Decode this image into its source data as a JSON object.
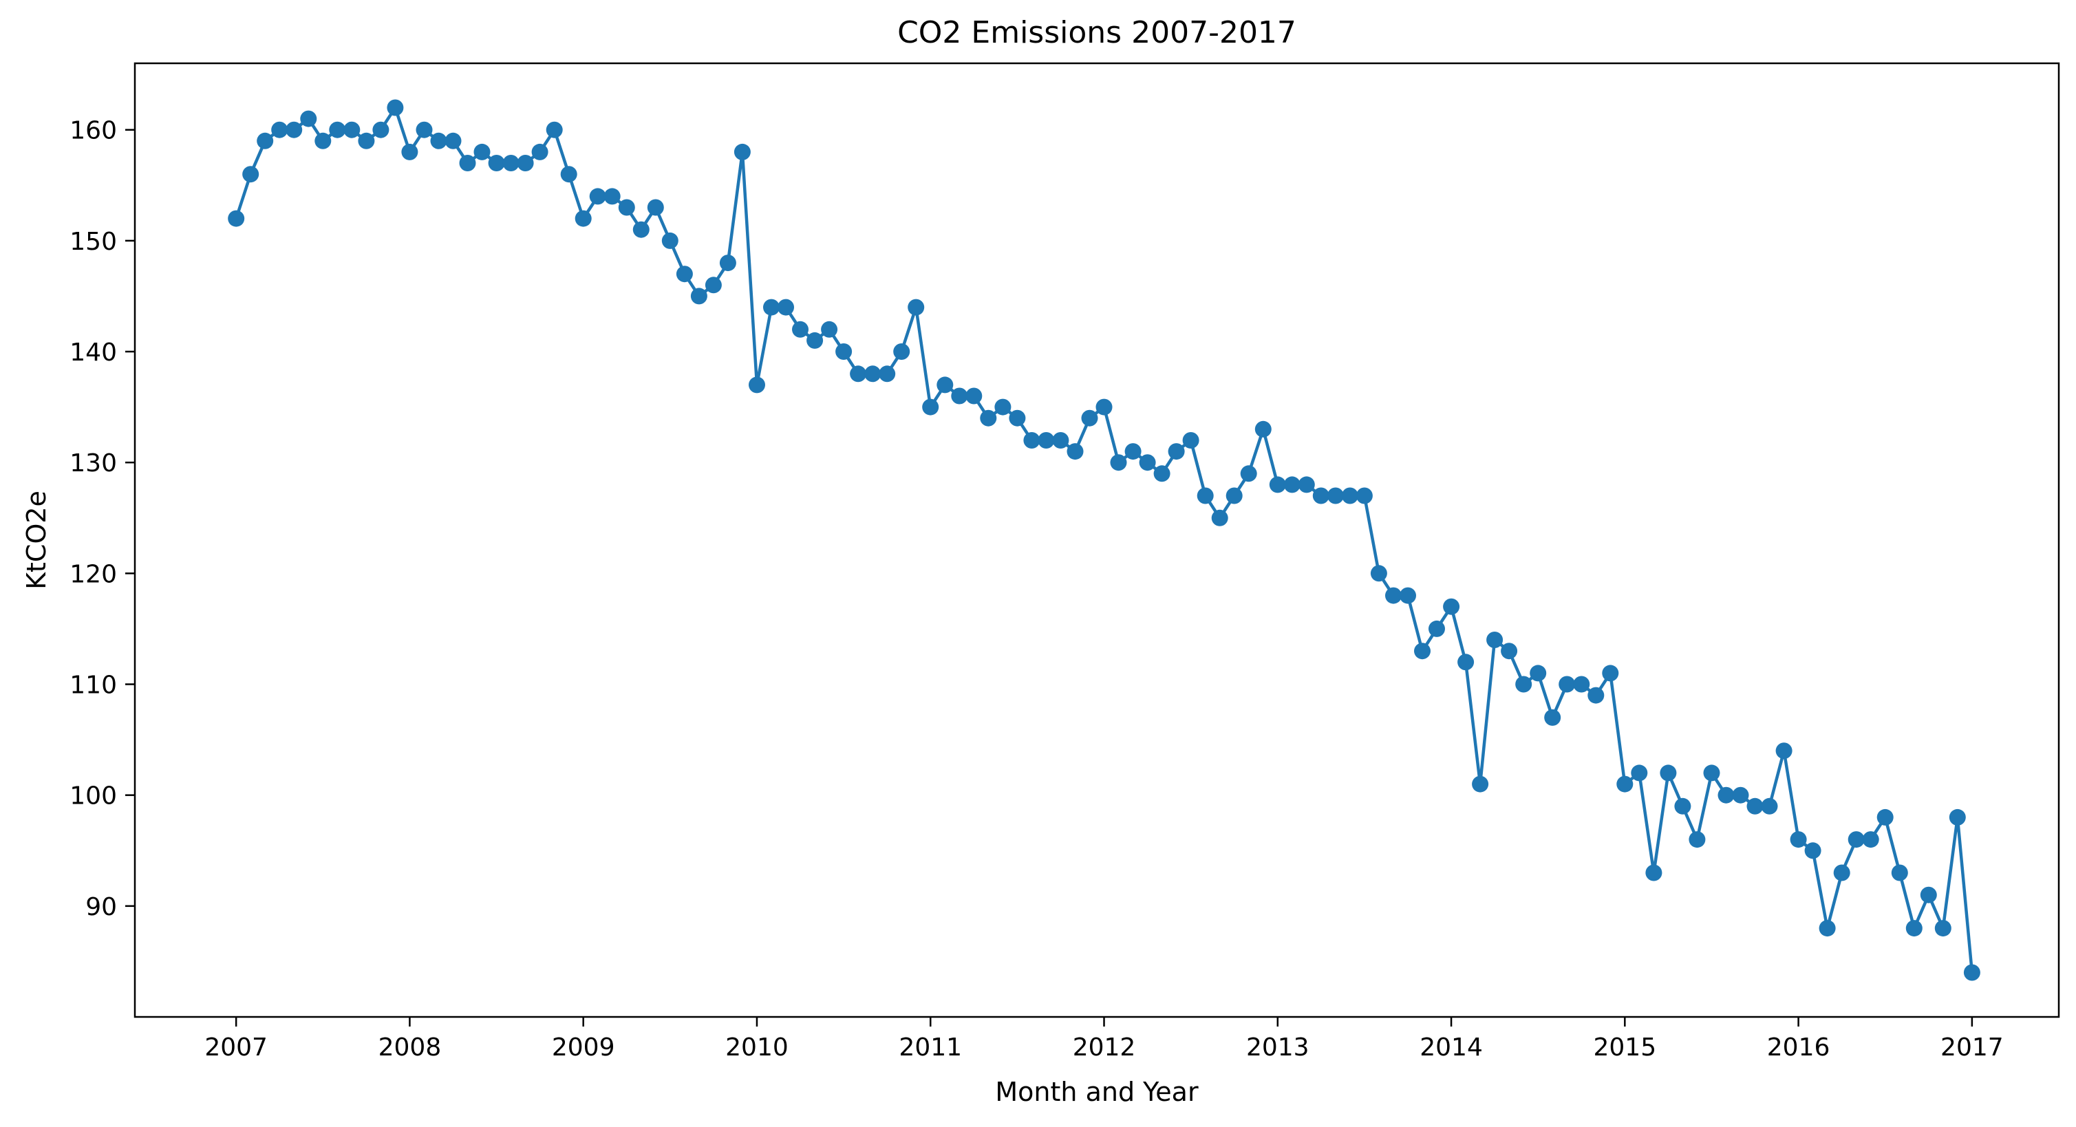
{
  "chart_data": {
    "type": "line",
    "title": "CO2 Emissions 2007-2017",
    "xlabel": "Month and Year",
    "ylabel": "KtCO2e",
    "xlim": [
      "2006-06-01",
      "2017-07-01"
    ],
    "ylim": [
      80,
      166
    ],
    "x_ticks": [
      "2007",
      "2008",
      "2009",
      "2010",
      "2011",
      "2012",
      "2013",
      "2014",
      "2015",
      "2016",
      "2017"
    ],
    "y_ticks": [
      "90",
      "100",
      "110",
      "120",
      "130",
      "140",
      "150",
      "160"
    ],
    "grid": false,
    "legend": "none",
    "marker": "circle",
    "colors": {
      "line": "#1f77b4",
      "axes": "#000000",
      "background": "#ffffff"
    },
    "x": [
      "2007-01",
      "2007-02",
      "2007-03",
      "2007-04",
      "2007-05",
      "2007-06",
      "2007-07",
      "2007-08",
      "2007-09",
      "2007-10",
      "2007-11",
      "2007-12",
      "2008-01",
      "2008-02",
      "2008-03",
      "2008-04",
      "2008-05",
      "2008-06",
      "2008-07",
      "2008-08",
      "2008-09",
      "2008-10",
      "2008-11",
      "2008-12",
      "2009-01",
      "2009-02",
      "2009-03",
      "2009-04",
      "2009-05",
      "2009-06",
      "2009-07",
      "2009-08",
      "2009-09",
      "2009-10",
      "2009-11",
      "2009-12",
      "2010-01",
      "2010-02",
      "2010-03",
      "2010-04",
      "2010-05",
      "2010-06",
      "2010-07",
      "2010-08",
      "2010-09",
      "2010-10",
      "2010-11",
      "2010-12",
      "2011-01",
      "2011-02",
      "2011-03",
      "2011-04",
      "2011-05",
      "2011-06",
      "2011-07",
      "2011-08",
      "2011-09",
      "2011-10",
      "2011-11",
      "2011-12",
      "2012-01",
      "2012-02",
      "2012-03",
      "2012-04",
      "2012-05",
      "2012-06",
      "2012-07",
      "2012-08",
      "2012-09",
      "2012-10",
      "2012-11",
      "2012-12",
      "2013-01",
      "2013-02",
      "2013-03",
      "2013-04",
      "2013-05",
      "2013-06",
      "2013-07",
      "2013-08",
      "2013-09",
      "2013-10",
      "2013-11",
      "2013-12",
      "2014-01",
      "2014-02",
      "2014-03",
      "2014-04",
      "2014-05",
      "2014-06",
      "2014-07",
      "2014-08",
      "2014-09",
      "2014-10",
      "2014-11",
      "2014-12",
      "2015-01",
      "2015-02",
      "2015-03",
      "2015-04",
      "2015-05",
      "2015-06",
      "2015-07",
      "2015-08",
      "2015-09",
      "2015-10",
      "2015-11",
      "2015-12",
      "2016-01",
      "2016-02",
      "2016-03",
      "2016-04",
      "2016-05",
      "2016-06",
      "2016-07",
      "2016-08",
      "2016-09",
      "2016-10",
      "2016-11",
      "2016-12",
      "2017-01"
    ],
    "series": [
      {
        "values": [
          152,
          156,
          159,
          160,
          160,
          161,
          159,
          160,
          160,
          159,
          160,
          162,
          158,
          160,
          159,
          159,
          157,
          158,
          157,
          157,
          157,
          158,
          160,
          156,
          152,
          154,
          154,
          153,
          151,
          153,
          150,
          147,
          145,
          146,
          148,
          158,
          137,
          144,
          144,
          142,
          141,
          142,
          140,
          138,
          138,
          138,
          140,
          144,
          135,
          137,
          136,
          136,
          134,
          135,
          134,
          132,
          132,
          132,
          131,
          134,
          135,
          130,
          131,
          130,
          129,
          131,
          132,
          127,
          125,
          127,
          129,
          133,
          128,
          128,
          128,
          127,
          127,
          127,
          127,
          120,
          118,
          118,
          113,
          115,
          117,
          112,
          101,
          114,
          113,
          110,
          111,
          107,
          110,
          110,
          109,
          111,
          101,
          102,
          93,
          102,
          99,
          96,
          102,
          100,
          100,
          99,
          99,
          104,
          96,
          95,
          88,
          93,
          96,
          96,
          98,
          93,
          88,
          91,
          88,
          98,
          84
        ]
      }
    ]
  }
}
